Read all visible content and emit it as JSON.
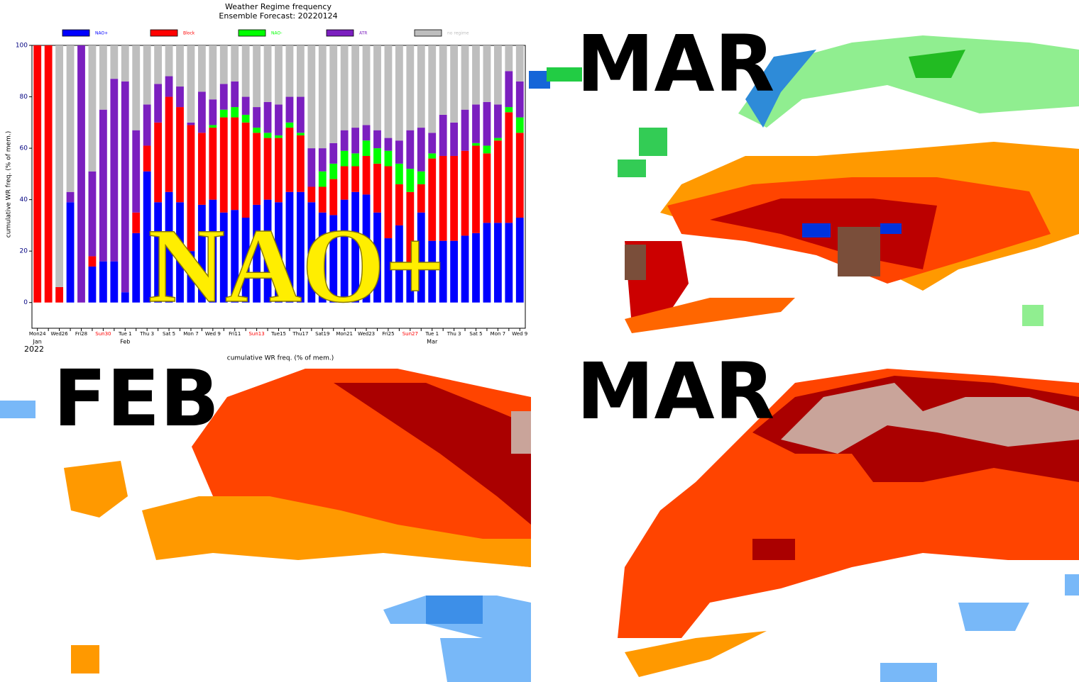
{
  "chart_data": {
    "type": "bar",
    "stacked": true,
    "title": "Weather Regime frequency",
    "subtitle": "Ensemble Forecast: 20220124",
    "ylabel": "cumulative WR freq. (% of mem.)",
    "xlabel": "cumulative WR freq. (% of mem.)",
    "year": "2022",
    "months": [
      "Jan",
      "Feb",
      "Mar"
    ],
    "categories": [
      "Mon24",
      null,
      "Wed26",
      null,
      "Fri28",
      null,
      "Sun30",
      null,
      "Tue 1",
      null,
      "Thu 3",
      null,
      "Sat 5",
      null,
      "Mon 7",
      null,
      "Wed 9",
      null,
      "Fri11",
      null,
      "Sun13",
      null,
      "Tue15",
      null,
      "Thu17",
      null,
      "Sat19",
      null,
      "Mon21",
      null,
      "Wed23",
      null,
      "Fri25",
      null,
      "Sun27",
      null,
      "Tue 1",
      null,
      "Thu 3",
      null,
      "Sat 5",
      null,
      "Mon 7",
      null,
      "Wed 9"
    ],
    "series": [
      {
        "name": "NAO+",
        "color": "#0000ff",
        "values": [
          0,
          0,
          0,
          39,
          0,
          14,
          16,
          16,
          4,
          27,
          51,
          39,
          43,
          39,
          20,
          38,
          40,
          35,
          36,
          33,
          38,
          40,
          39,
          43,
          43,
          39,
          35,
          34,
          40,
          43,
          42,
          35,
          25,
          30,
          14,
          35,
          24,
          24,
          24,
          26,
          27,
          31,
          31,
          31,
          33
        ]
      },
      {
        "name": "Block",
        "color": "#ff0000",
        "values": [
          100,
          100,
          6,
          0,
          0,
          4,
          0,
          0,
          0,
          8,
          10,
          31,
          37,
          37,
          49,
          28,
          28,
          37,
          36,
          37,
          28,
          24,
          25,
          25,
          22,
          6,
          10,
          14,
          13,
          10,
          15,
          19,
          28,
          16,
          29,
          11,
          32,
          33,
          33,
          33,
          34,
          27,
          32,
          43,
          33
        ]
      },
      {
        "name": "NAO-",
        "color": "#00ff00",
        "values": [
          0,
          0,
          0,
          0,
          0,
          0,
          0,
          0,
          0,
          0,
          0,
          0,
          0,
          0,
          0,
          0,
          1,
          3,
          4,
          3,
          2,
          2,
          1,
          2,
          1,
          0,
          6,
          6,
          6,
          5,
          6,
          6,
          6,
          8,
          9,
          5,
          2,
          0,
          0,
          0,
          1,
          3,
          1,
          2,
          6
        ]
      },
      {
        "name": "ATR",
        "color": "#7b1fbf",
        "values": [
          0,
          0,
          0,
          4,
          100,
          33,
          59,
          71,
          82,
          32,
          16,
          15,
          8,
          8,
          1,
          16,
          10,
          10,
          10,
          7,
          8,
          12,
          12,
          10,
          14,
          15,
          9,
          8,
          8,
          10,
          6,
          7,
          5,
          9,
          15,
          17,
          8,
          16,
          13,
          16,
          15,
          17,
          13,
          14,
          14
        ]
      },
      {
        "name": "no regime",
        "color": "#bebebe",
        "values": [
          0,
          0,
          94,
          57,
          0,
          49,
          25,
          13,
          14,
          33,
          23,
          15,
          12,
          16,
          30,
          18,
          21,
          15,
          14,
          20,
          24,
          22,
          23,
          20,
          20,
          40,
          40,
          38,
          33,
          32,
          31,
          33,
          36,
          37,
          33,
          32,
          34,
          27,
          30,
          25,
          23,
          22,
          23,
          10,
          14
        ]
      }
    ],
    "ylim": [
      -10,
      100
    ],
    "yticks": [
      0,
      20,
      40,
      60,
      80,
      100
    ]
  },
  "overlay_text": "NAO+",
  "maps": [
    {
      "label": "MAR"
    },
    {
      "label": "FEB"
    },
    {
      "label": "MAR"
    }
  ]
}
